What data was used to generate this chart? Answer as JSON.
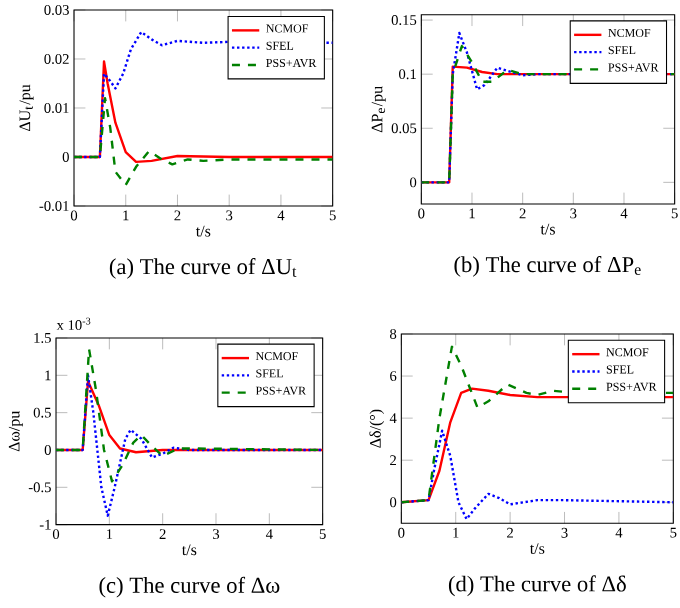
{
  "chart_data": [
    {
      "type": "line",
      "title": "(a) The curve of ΔU$_{t}$",
      "xlabel": "t/s",
      "ylabel": "ΔU$_{t}$/pu",
      "legend": "top right",
      "xlim": [
        0,
        5
      ],
      "xticks": [
        0,
        1,
        2,
        3,
        4,
        5
      ],
      "ylim": [
        -0.01,
        0.03
      ],
      "yticks": [
        -0.01,
        0,
        0.01,
        0.02,
        0.03
      ],
      "series": [
        {
          "name": "NCMOF",
          "color": "#ff0000",
          "line_style": "solid",
          "x": [
            0,
            0.5,
            0.58,
            0.65,
            0.8,
            1.0,
            1.2,
            1.5,
            2,
            3,
            5
          ],
          "values": [
            0,
            0,
            0.0195,
            0.015,
            0.007,
            0.001,
            -0.001,
            -0.0008,
            0.0002,
            0,
            0
          ]
        },
        {
          "name": "SFEL",
          "color": "#0000ff",
          "line_style": "dotted",
          "x": [
            0,
            0.5,
            0.58,
            0.7,
            0.8,
            0.95,
            1.1,
            1.3,
            1.5,
            1.7,
            2.0,
            2.5,
            3,
            5
          ],
          "values": [
            0,
            0,
            0.017,
            0.0155,
            0.014,
            0.017,
            0.022,
            0.0255,
            0.024,
            0.0228,
            0.0237,
            0.0233,
            0.0235,
            0.0233
          ]
        },
        {
          "name": "PSS+AVR",
          "color": "#008000",
          "line_style": "dashed",
          "x": [
            0,
            0.5,
            0.6,
            0.7,
            0.8,
            1.0,
            1.2,
            1.45,
            1.7,
            1.9,
            2.2,
            2.5,
            3,
            5
          ],
          "values": [
            0,
            0,
            0.012,
            0.006,
            -0.003,
            -0.0057,
            -0.002,
            0.0012,
            -0.0005,
            -0.0015,
            -0.0005,
            -0.0008,
            -0.0005,
            -0.0005
          ]
        }
      ]
    },
    {
      "type": "line",
      "title": "(b) The curve of ΔP$_{e}$",
      "xlabel": "t/s",
      "ylabel": "ΔP$_{e}$/pu",
      "legend": "top right",
      "xlim": [
        0,
        5
      ],
      "xticks": [
        0,
        1,
        2,
        3,
        4,
        5
      ],
      "ylim": [
        -0.02,
        0.155
      ],
      "yticks": [
        0,
        0.05,
        0.1,
        0.15
      ],
      "series": [
        {
          "name": "NCMOF",
          "color": "#ff0000",
          "line_style": "solid",
          "x": [
            0,
            0.55,
            0.62,
            0.9,
            1.2,
            1.5,
            5
          ],
          "values": [
            0,
            0,
            0.107,
            0.106,
            0.102,
            0.1,
            0.1
          ]
        },
        {
          "name": "SFEL",
          "color": "#0000ff",
          "line_style": "dotted",
          "x": [
            0,
            0.55,
            0.62,
            0.75,
            0.9,
            1.1,
            1.25,
            1.5,
            1.7,
            2.0,
            2.3,
            5
          ],
          "values": [
            0,
            0,
            0.1,
            0.138,
            0.12,
            0.086,
            0.09,
            0.106,
            0.103,
            0.099,
            0.1,
            0.1
          ]
        },
        {
          "name": "PSS+AVR",
          "color": "#008000",
          "line_style": "dashed",
          "x": [
            0,
            0.55,
            0.62,
            0.8,
            1.0,
            1.2,
            1.4,
            1.7,
            2.0,
            2.5,
            5
          ],
          "values": [
            0,
            0,
            0.1,
            0.126,
            0.111,
            0.093,
            0.093,
            0.104,
            0.1,
            0.1,
            0.1
          ]
        }
      ]
    },
    {
      "type": "line",
      "title": "(c) The curve of Δω",
      "xlabel": "t/s",
      "ylabel": "Δω/pu",
      "legend": "top right",
      "annotations": [
        "x 10$^{-3}$"
      ],
      "xlim": [
        0,
        5
      ],
      "xticks": [
        0,
        1,
        2,
        3,
        4,
        5
      ],
      "ylim": [
        -1,
        1.5
      ],
      "yticks": [
        -1,
        -0.5,
        0,
        0.5,
        1,
        1.5
      ],
      "series": [
        {
          "name": "NCMOF",
          "color": "#ff0000",
          "line_style": "solid",
          "x": [
            0,
            0.5,
            0.6,
            0.8,
            1.0,
            1.2,
            1.5,
            2,
            5
          ],
          "values": [
            0,
            0,
            0.92,
            0.6,
            0.2,
            0.02,
            -0.03,
            0,
            0
          ]
        },
        {
          "name": "SFEL",
          "color": "#0000ff",
          "line_style": "dotted",
          "x": [
            0,
            0.5,
            0.6,
            0.7,
            0.85,
            0.97,
            1.1,
            1.3,
            1.4,
            1.6,
            1.8,
            2.0,
            2.2,
            2.5,
            5
          ],
          "values": [
            0,
            0,
            1.0,
            0.5,
            -0.5,
            -0.88,
            -0.5,
            0.15,
            0.27,
            0.15,
            -0.1,
            -0.05,
            0.03,
            0,
            0
          ]
        },
        {
          "name": "PSS+AVR",
          "color": "#008000",
          "line_style": "dashed",
          "x": [
            0,
            0.5,
            0.62,
            0.75,
            0.9,
            1.05,
            1.25,
            1.45,
            1.6,
            1.8,
            2.0,
            2.3,
            2.6,
            5
          ],
          "values": [
            0,
            0,
            1.35,
            0.8,
            0,
            -0.42,
            -0.2,
            0.1,
            0.2,
            0.05,
            -0.08,
            0.02,
            0.02,
            0
          ]
        }
      ]
    },
    {
      "type": "line",
      "title": "(d) The curve of Δδ",
      "xlabel": "t/s",
      "ylabel": "Δδ/(°)",
      "legend": "top right",
      "xlim": [
        0,
        5
      ],
      "xticks": [
        0,
        1,
        2,
        3,
        4,
        5
      ],
      "ylim": [
        -1,
        8
      ],
      "yticks": [
        0,
        2,
        4,
        6,
        8
      ],
      "series": [
        {
          "name": "NCMOF",
          "color": "#ff0000",
          "line_style": "solid",
          "x": [
            0,
            0.5,
            0.7,
            0.9,
            1.1,
            1.3,
            1.6,
            2.0,
            2.5,
            5
          ],
          "values": [
            0,
            0.1,
            1.5,
            3.8,
            5.2,
            5.4,
            5.3,
            5.1,
            5.0,
            5.0
          ]
        },
        {
          "name": "SFEL",
          "color": "#0000ff",
          "line_style": "dotted",
          "x": [
            0,
            0.5,
            0.6,
            0.75,
            0.9,
            1.05,
            1.2,
            1.35,
            1.6,
            1.8,
            2.0,
            2.5,
            3.0,
            5
          ],
          "values": [
            0,
            0.1,
            1.5,
            3.4,
            2.2,
            0,
            -0.8,
            -0.3,
            0.4,
            0.2,
            -0.1,
            0.1,
            0.1,
            0
          ]
        },
        {
          "name": "PSS+AVR",
          "color": "#008000",
          "line_style": "dashed",
          "x": [
            0,
            0.5,
            0.7,
            0.93,
            1.1,
            1.4,
            1.6,
            1.95,
            2.3,
            2.5,
            2.8,
            3.2,
            5
          ],
          "values": [
            0,
            0.1,
            4,
            7.4,
            6.5,
            4.5,
            4.8,
            5.6,
            5.2,
            5.1,
            5.3,
            5.2,
            5.2
          ]
        }
      ]
    }
  ]
}
